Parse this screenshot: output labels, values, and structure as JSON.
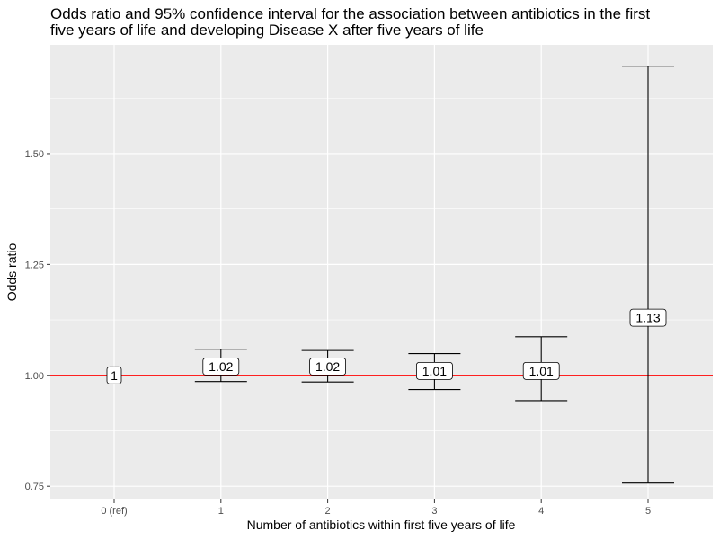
{
  "chart_data": {
    "type": "errorbar",
    "title_lines": [
      "Odds ratio and 95% confidence interval for the association between antibiotics in the first",
      "five years of life and developing Disease X after five years of life"
    ],
    "xlabel": "Number of antibiotics within first five years of life",
    "ylabel": "Odds ratio",
    "categories": [
      "0 (ref)",
      "1",
      "2",
      "3",
      "4",
      "5"
    ],
    "estimates": [
      1.0,
      1.02,
      1.02,
      1.01,
      1.01,
      1.13
    ],
    "estimate_labels": [
      "1",
      "1.02",
      "1.02",
      "1.01",
      "1.01",
      "1.13"
    ],
    "ci_lower": [
      null,
      0.986,
      0.985,
      0.968,
      0.943,
      0.757
    ],
    "ci_upper": [
      null,
      1.059,
      1.056,
      1.049,
      1.087,
      1.697
    ],
    "yticks": [
      0.75,
      1.0,
      1.25,
      1.5
    ],
    "ytick_labels": [
      "0.75",
      "1.00",
      "1.25",
      "1.50"
    ],
    "ylim": [
      0.72,
      1.745
    ],
    "reference_line": {
      "y": 1.0,
      "color": "#ff0000"
    },
    "panel_background": "#ebebeb",
    "grid_color": "#ffffff",
    "grid": true
  }
}
